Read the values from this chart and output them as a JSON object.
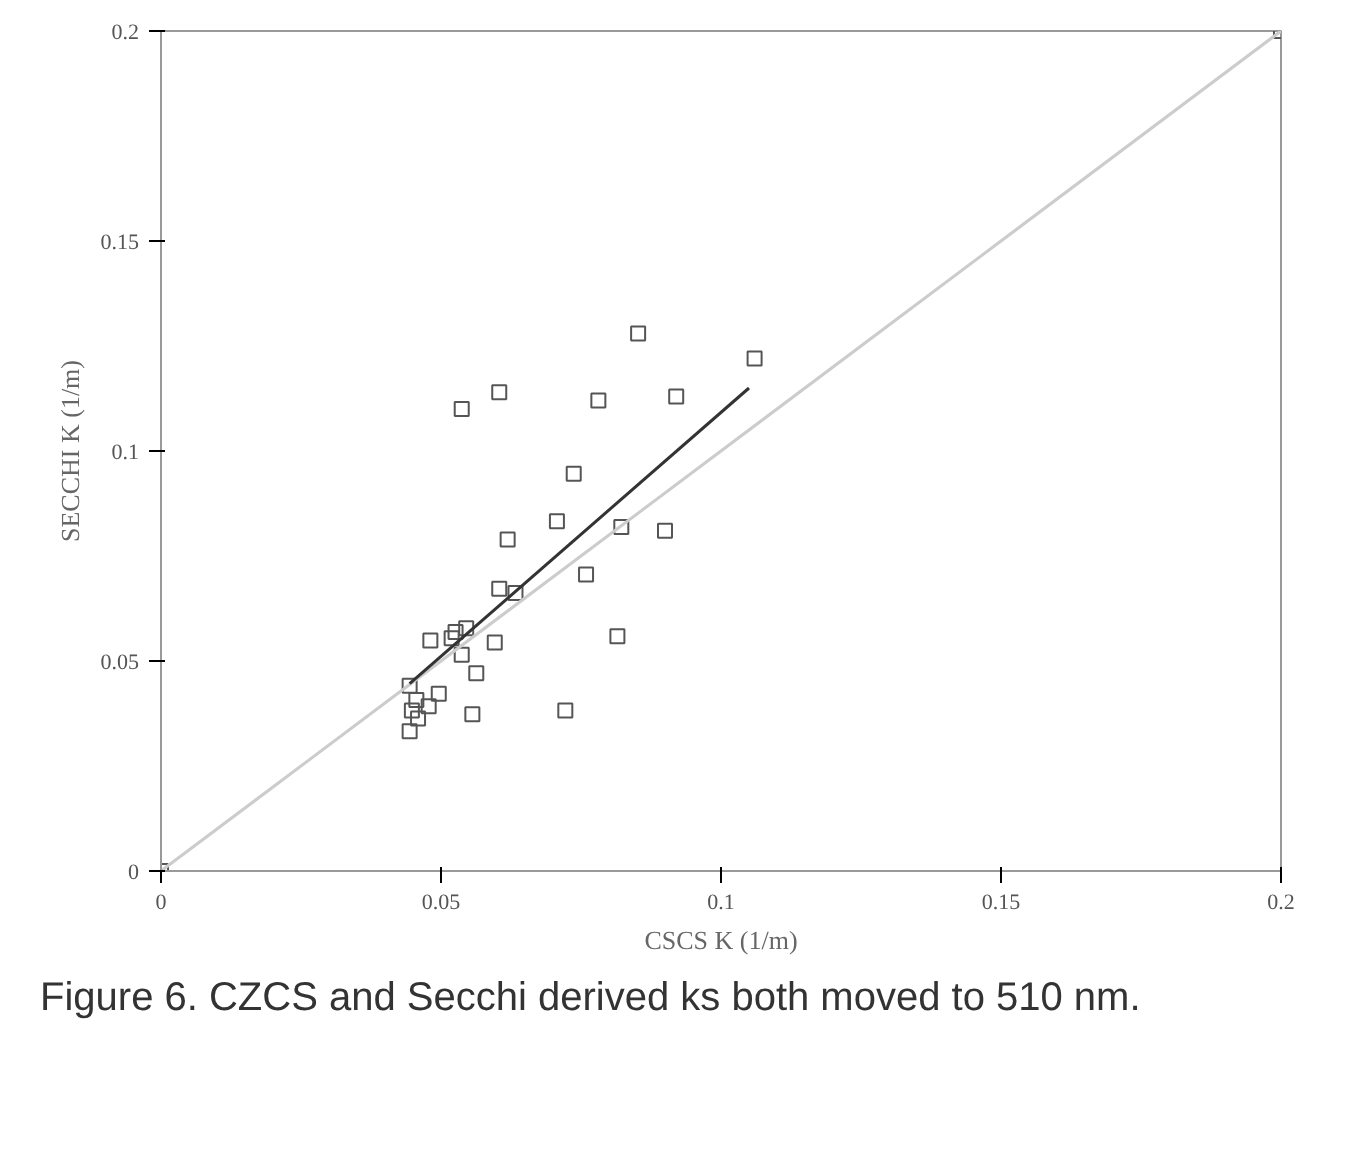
{
  "chart_data": {
    "type": "scatter",
    "xlabel": "CSCS K (1/m)",
    "ylabel": "SECCHI K (1/m)",
    "xlim": [
      0,
      0.2
    ],
    "ylim": [
      0,
      0.2
    ],
    "xticks": [
      0,
      0.05,
      0.1,
      0.15,
      0.2
    ],
    "yticks": [
      0,
      0.05,
      0.1,
      0.15,
      0.2
    ],
    "grid": false,
    "series": [
      {
        "color": "#555555",
        "marker": "square",
        "x": [
          0.2,
          0,
          0.0852,
          0.0604,
          0.0537,
          0.0781,
          0.0737,
          0.0707,
          0.0619,
          0.0822,
          0.0759,
          0.0604,
          0.0633,
          0.0815,
          0.0545,
          0.0481,
          0.0519,
          0.0526,
          0.0596,
          0.0537,
          0.0563,
          0.0496,
          0.0556,
          0.0722,
          0.0444,
          0.0456,
          0.0448,
          0.0459,
          0.0478,
          0.0444,
          0.106,
          0.092,
          0.09
        ],
        "values": [
          0.2,
          0,
          0.128,
          0.114,
          0.11,
          0.112,
          0.0946,
          0.0833,
          0.0789,
          0.0819,
          0.0706,
          0.0672,
          0.0662,
          0.0559,
          0.0578,
          0.0549,
          0.0554,
          0.0569,
          0.0544,
          0.0515,
          0.0471,
          0.0422,
          0.0373,
          0.0382,
          0.0441,
          0.0407,
          0.0382,
          0.0363,
          0.0392,
          0.0333,
          0.122,
          0.113,
          0.081
        ]
      },
      {
        "type": "line",
        "color": "#cccccc",
        "x": [
          0,
          0.2
        ],
        "values": [
          0,
          0.2
        ]
      },
      {
        "type": "line",
        "color": "#333333",
        "x": [
          0.0444,
          0.105
        ],
        "values": [
          0.0446,
          0.115
        ]
      }
    ],
    "annotations": [
      "Figure 6. CZCS and Secchi derived ks both moved to 510 nm."
    ]
  }
}
